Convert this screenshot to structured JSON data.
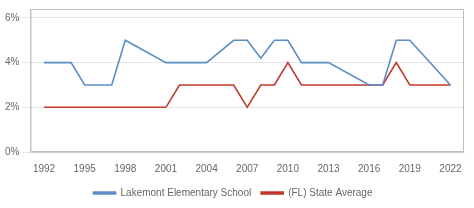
{
  "chart_data": {
    "type": "line",
    "x": [
      1992,
      1994,
      1995,
      1997,
      1998,
      2001,
      2002,
      2003,
      2004,
      2006,
      2007,
      2008,
      2009,
      2010,
      2011,
      2013,
      2016,
      2017,
      2018,
      2019,
      2022
    ],
    "series": [
      {
        "name": "Lakemont Elementary School",
        "color": "#5b8ec4",
        "values": [
          4.0,
          4.0,
          3.0,
          3.0,
          5.0,
          4.0,
          4.0,
          4.0,
          4.0,
          5.0,
          5.0,
          4.2,
          5.0,
          5.0,
          4.0,
          4.0,
          3.0,
          3.0,
          5.0,
          5.0,
          3.0
        ]
      },
      {
        "name": "(FL) State Average",
        "color": "#c0392b",
        "values": [
          2.0,
          2.0,
          2.0,
          2.0,
          2.0,
          2.0,
          3.0,
          3.0,
          3.0,
          3.0,
          2.0,
          3.0,
          3.0,
          4.0,
          3.0,
          3.0,
          3.0,
          3.0,
          4.0,
          3.0,
          3.0
        ]
      }
    ],
    "xlim": [
      1991.0,
      2023.0
    ],
    "xticks": [
      1992,
      1995,
      1998,
      2001,
      2004,
      2007,
      2010,
      2013,
      2016,
      2019,
      2022
    ],
    "ylim": [
      0,
      6.4
    ],
    "yticks": [
      {
        "value": 0,
        "label": "0%"
      },
      {
        "value": 2,
        "label": "2%"
      },
      {
        "value": 4,
        "label": "4%"
      },
      {
        "value": 6,
        "label": "6%"
      }
    ],
    "grid": "y",
    "legend": "bottom"
  }
}
